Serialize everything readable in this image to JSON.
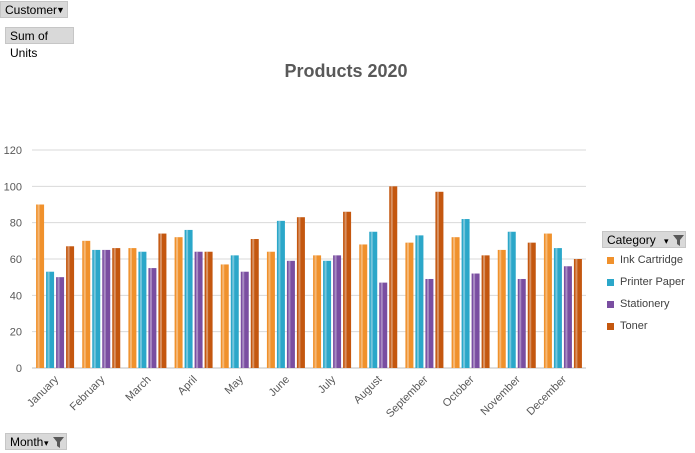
{
  "filters": {
    "customer_label": "Customer",
    "values_label": "Sum of Units",
    "axis_field_label": "Month",
    "legend_field_label": "Category"
  },
  "colors": {
    "Ink Cartridge": "#f0912c",
    "Printer Paper": "#2ba7c9",
    "Stationery": "#7a4ea1",
    "Toner": "#c4570f"
  },
  "chart_data": {
    "type": "bar",
    "title": "Products 2020",
    "xlabel": "",
    "ylabel": "",
    "ylim": [
      0,
      120
    ],
    "yticks": [
      0,
      20,
      40,
      60,
      80,
      100,
      120
    ],
    "grid": true,
    "legend_position": "right",
    "categories": [
      "January",
      "February",
      "March",
      "April",
      "May",
      "June",
      "July",
      "August",
      "September",
      "October",
      "November",
      "December"
    ],
    "series": [
      {
        "name": "Ink Cartridge",
        "values": [
          90,
          70,
          66,
          72,
          57,
          64,
          62,
          68,
          69,
          72,
          65,
          74
        ]
      },
      {
        "name": "Printer Paper",
        "values": [
          53,
          65,
          64,
          76,
          62,
          81,
          59,
          75,
          73,
          82,
          75,
          66
        ]
      },
      {
        "name": "Stationery",
        "values": [
          50,
          65,
          55,
          64,
          53,
          59,
          62,
          47,
          49,
          52,
          49,
          56
        ]
      },
      {
        "name": "Toner",
        "values": [
          67,
          66,
          74,
          64,
          71,
          83,
          86,
          100,
          97,
          62,
          69,
          60
        ]
      }
    ]
  }
}
